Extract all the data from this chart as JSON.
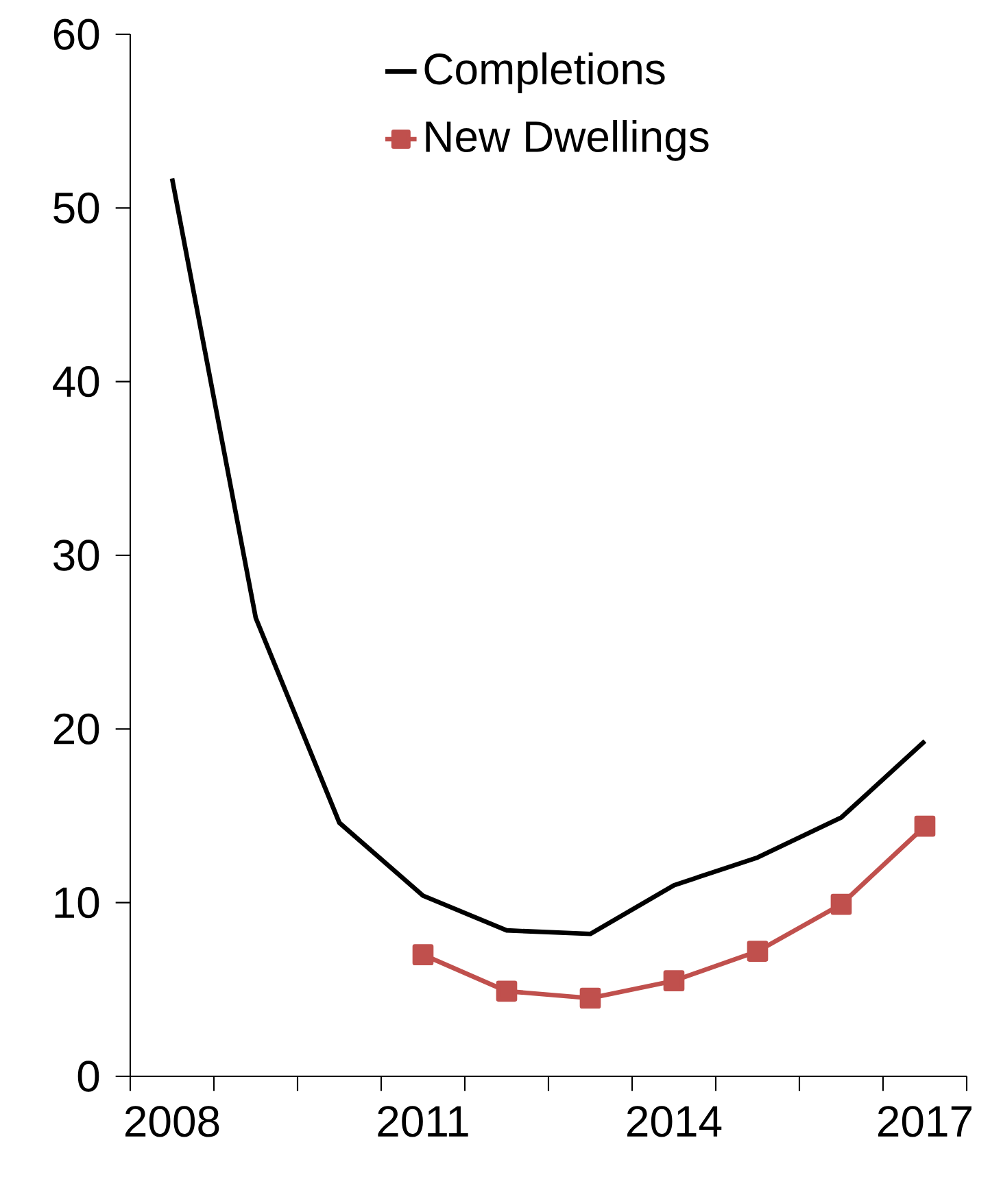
{
  "chart_data": {
    "type": "line",
    "categories": [
      "2008",
      null,
      null,
      "2011",
      null,
      null,
      "2014",
      null,
      null,
      "2017"
    ],
    "series": [
      {
        "name": "Completions",
        "color": "#000000",
        "marker": "none",
        "values": [
          51.7,
          26.4,
          14.6,
          10.4,
          8.4,
          8.2,
          11.0,
          12.6,
          14.9,
          19.3
        ]
      },
      {
        "name": "New Dwellings",
        "color": "#c0504d",
        "marker": "square",
        "values": [
          null,
          null,
          null,
          7.0,
          4.9,
          4.5,
          5.5,
          7.2,
          9.9,
          14.4
        ]
      }
    ],
    "ylim": [
      0,
      60
    ],
    "yticks": [
      0,
      10,
      20,
      30,
      40,
      50,
      60
    ],
    "grid": false,
    "legend": "top"
  }
}
